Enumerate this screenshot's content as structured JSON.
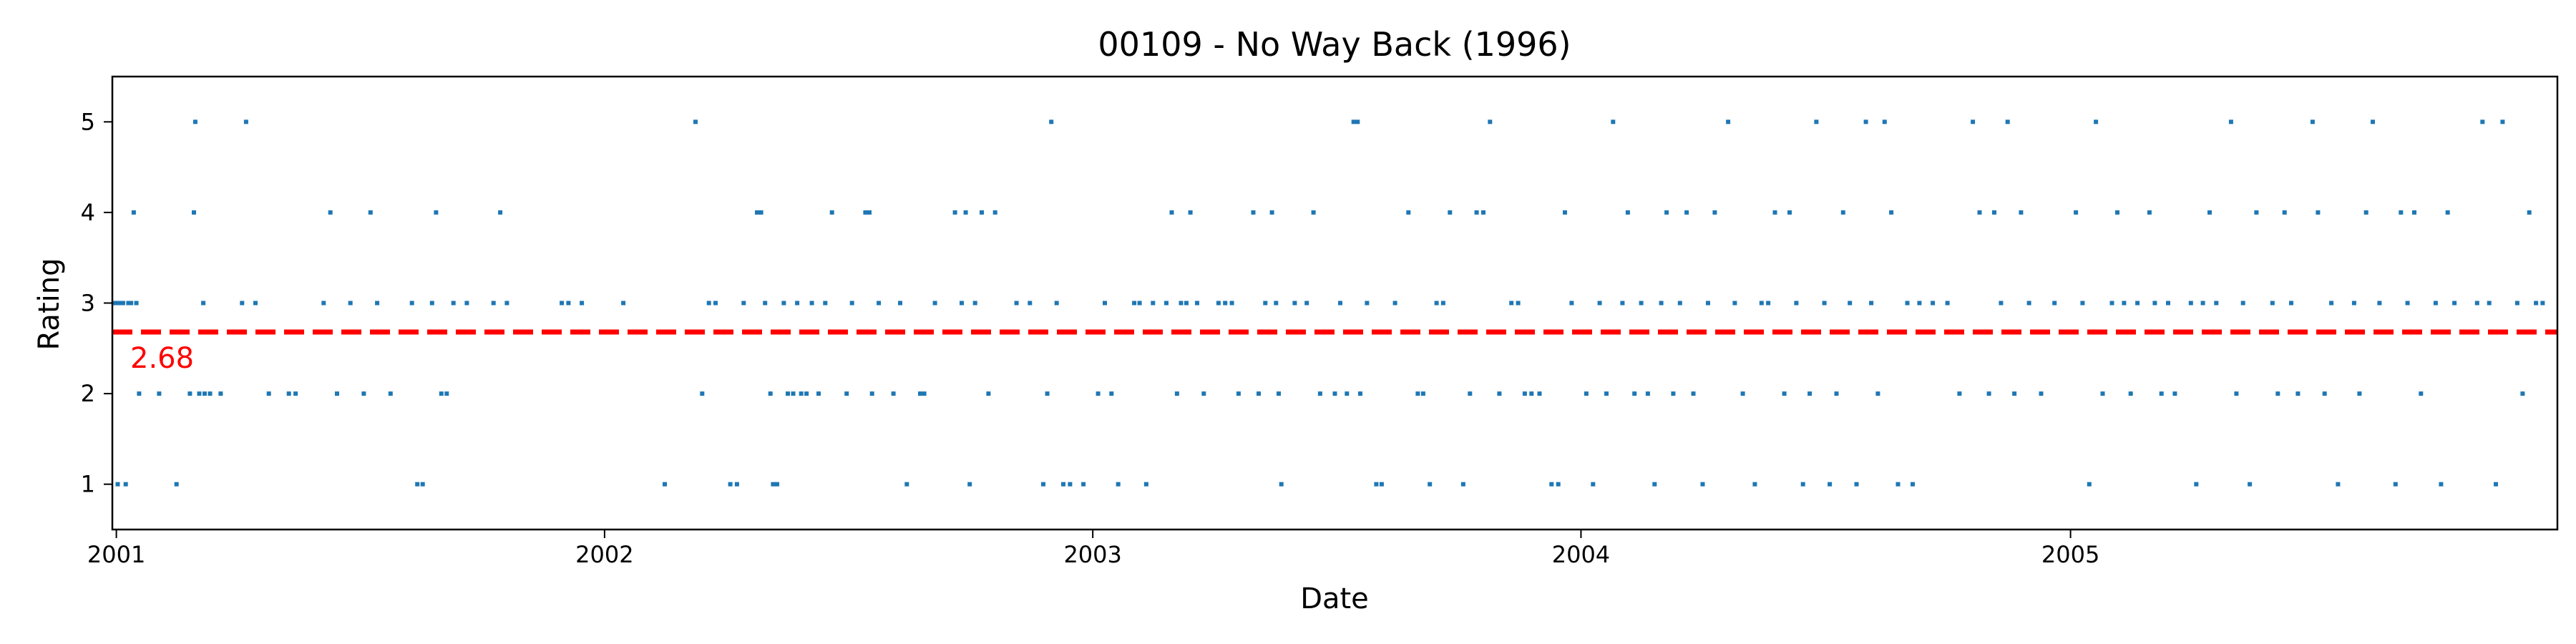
{
  "chart_data": {
    "type": "scatter",
    "title": "00109 - No Way Back (1996)",
    "xlabel": "Date",
    "ylabel": "Rating",
    "x_ticks": [
      "2001",
      "2002",
      "2003",
      "2004",
      "2005"
    ],
    "y_ticks": [
      1,
      2,
      3,
      4,
      5
    ],
    "xlim": [
      "2000-12-29",
      "2005-12-31"
    ],
    "ylim": [
      0.5,
      5.5
    ],
    "grid": false,
    "mean_rating": 2.68,
    "mean_label": "2.68",
    "colors": {
      "points": "#1f77b4",
      "mean_line": "#ff0000"
    },
    "series": [
      {
        "points": [
          [
            "2000-12-30",
            3
          ],
          [
            "2001-01-01",
            3
          ],
          [
            "2001-01-02",
            1
          ],
          [
            "2001-01-04",
            3
          ],
          [
            "2001-01-06",
            3
          ],
          [
            "2001-01-08",
            1
          ],
          [
            "2001-01-10",
            3
          ],
          [
            "2001-01-12",
            3
          ],
          [
            "2001-01-14",
            4
          ],
          [
            "2001-01-16",
            3
          ],
          [
            "2001-01-18",
            2
          ],
          [
            "2001-02-02",
            2
          ],
          [
            "2001-02-15",
            1
          ],
          [
            "2001-02-25",
            2
          ],
          [
            "2001-02-28",
            4
          ],
          [
            "2001-03-01",
            5
          ],
          [
            "2001-03-04",
            2
          ],
          [
            "2001-03-07",
            3
          ],
          [
            "2001-03-08",
            2
          ],
          [
            "2001-03-12",
            2
          ],
          [
            "2001-03-20",
            2
          ],
          [
            "2001-04-05",
            3
          ],
          [
            "2001-04-08",
            5
          ],
          [
            "2001-04-15",
            3
          ],
          [
            "2001-04-25",
            2
          ],
          [
            "2001-05-10",
            2
          ],
          [
            "2001-05-15",
            2
          ],
          [
            "2001-06-05",
            3
          ],
          [
            "2001-06-10",
            4
          ],
          [
            "2001-06-15",
            2
          ],
          [
            "2001-06-25",
            3
          ],
          [
            "2001-07-05",
            2
          ],
          [
            "2001-07-10",
            4
          ],
          [
            "2001-07-15",
            3
          ],
          [
            "2001-07-25",
            2
          ],
          [
            "2001-08-10",
            3
          ],
          [
            "2001-08-14",
            1
          ],
          [
            "2001-08-18",
            1
          ],
          [
            "2001-08-25",
            3
          ],
          [
            "2001-08-28",
            4
          ],
          [
            "2001-09-01",
            2
          ],
          [
            "2001-09-05",
            2
          ],
          [
            "2001-09-10",
            3
          ],
          [
            "2001-09-20",
            3
          ],
          [
            "2001-10-10",
            3
          ],
          [
            "2001-10-15",
            4
          ],
          [
            "2001-10-20",
            3
          ],
          [
            "2001-11-30",
            3
          ],
          [
            "2001-12-05",
            3
          ],
          [
            "2001-12-15",
            3
          ],
          [
            "2002-01-15",
            3
          ],
          [
            "2002-02-15",
            1
          ],
          [
            "2002-03-10",
            5
          ],
          [
            "2002-03-15",
            2
          ],
          [
            "2002-03-20",
            3
          ],
          [
            "2002-03-25",
            3
          ],
          [
            "2002-04-05",
            1
          ],
          [
            "2002-04-10",
            1
          ],
          [
            "2002-04-15",
            3
          ],
          [
            "2002-04-25",
            4
          ],
          [
            "2002-04-28",
            4
          ],
          [
            "2002-05-01",
            3
          ],
          [
            "2002-05-05",
            2
          ],
          [
            "2002-05-07",
            1
          ],
          [
            "2002-05-10",
            1
          ],
          [
            "2002-05-15",
            3
          ],
          [
            "2002-05-18",
            2
          ],
          [
            "2002-05-22",
            2
          ],
          [
            "2002-05-25",
            3
          ],
          [
            "2002-05-28",
            2
          ],
          [
            "2002-06-01",
            2
          ],
          [
            "2002-06-05",
            3
          ],
          [
            "2002-06-10",
            2
          ],
          [
            "2002-06-15",
            3
          ],
          [
            "2002-06-20",
            4
          ],
          [
            "2002-07-01",
            2
          ],
          [
            "2002-07-05",
            3
          ],
          [
            "2002-07-15",
            4
          ],
          [
            "2002-07-18",
            4
          ],
          [
            "2002-07-20",
            2
          ],
          [
            "2002-07-25",
            3
          ],
          [
            "2002-08-05",
            2
          ],
          [
            "2002-08-10",
            3
          ],
          [
            "2002-08-15",
            1
          ],
          [
            "2002-08-25",
            2
          ],
          [
            "2002-08-28",
            2
          ],
          [
            "2002-09-05",
            3
          ],
          [
            "2002-09-20",
            4
          ],
          [
            "2002-09-25",
            3
          ],
          [
            "2002-09-28",
            4
          ],
          [
            "2002-10-01",
            1
          ],
          [
            "2002-10-05",
            3
          ],
          [
            "2002-10-10",
            4
          ],
          [
            "2002-10-15",
            2
          ],
          [
            "2002-10-20",
            4
          ],
          [
            "2002-11-05",
            3
          ],
          [
            "2002-11-15",
            3
          ],
          [
            "2002-11-25",
            1
          ],
          [
            "2002-11-28",
            2
          ],
          [
            "2002-12-01",
            5
          ],
          [
            "2002-12-05",
            3
          ],
          [
            "2002-12-10",
            1
          ],
          [
            "2002-12-15",
            1
          ],
          [
            "2002-12-25",
            1
          ],
          [
            "2003-01-05",
            2
          ],
          [
            "2003-01-10",
            3
          ],
          [
            "2003-01-15",
            2
          ],
          [
            "2003-01-20",
            1
          ],
          [
            "2003-02-01",
            3
          ],
          [
            "2003-02-05",
            3
          ],
          [
            "2003-02-10",
            1
          ],
          [
            "2003-02-15",
            3
          ],
          [
            "2003-02-25",
            3
          ],
          [
            "2003-03-01",
            4
          ],
          [
            "2003-03-05",
            2
          ],
          [
            "2003-03-08",
            3
          ],
          [
            "2003-03-12",
            3
          ],
          [
            "2003-03-15",
            4
          ],
          [
            "2003-03-20",
            3
          ],
          [
            "2003-03-25",
            2
          ],
          [
            "2003-04-05",
            3
          ],
          [
            "2003-04-10",
            3
          ],
          [
            "2003-04-15",
            3
          ],
          [
            "2003-04-20",
            2
          ],
          [
            "2003-05-01",
            4
          ],
          [
            "2003-05-05",
            2
          ],
          [
            "2003-05-10",
            3
          ],
          [
            "2003-05-15",
            4
          ],
          [
            "2003-05-18",
            3
          ],
          [
            "2003-05-20",
            2
          ],
          [
            "2003-05-22",
            1
          ],
          [
            "2003-06-01",
            3
          ],
          [
            "2003-06-10",
            3
          ],
          [
            "2003-06-15",
            4
          ],
          [
            "2003-06-20",
            2
          ],
          [
            "2003-07-01",
            2
          ],
          [
            "2003-07-05",
            3
          ],
          [
            "2003-07-10",
            2
          ],
          [
            "2003-07-15",
            5
          ],
          [
            "2003-07-18",
            5
          ],
          [
            "2003-07-20",
            2
          ],
          [
            "2003-07-25",
            3
          ],
          [
            "2003-08-01",
            1
          ],
          [
            "2003-08-05",
            1
          ],
          [
            "2003-08-15",
            3
          ],
          [
            "2003-08-25",
            4
          ],
          [
            "2003-09-01",
            2
          ],
          [
            "2003-09-05",
            2
          ],
          [
            "2003-09-10",
            1
          ],
          [
            "2003-09-15",
            3
          ],
          [
            "2003-09-20",
            3
          ],
          [
            "2003-09-25",
            4
          ],
          [
            "2003-10-05",
            1
          ],
          [
            "2003-10-10",
            2
          ],
          [
            "2003-10-15",
            4
          ],
          [
            "2003-10-20",
            4
          ],
          [
            "2003-10-25",
            5
          ],
          [
            "2003-11-01",
            2
          ],
          [
            "2003-11-10",
            3
          ],
          [
            "2003-11-15",
            3
          ],
          [
            "2003-11-20",
            2
          ],
          [
            "2003-11-25",
            2
          ],
          [
            "2003-12-01",
            2
          ],
          [
            "2003-12-10",
            1
          ],
          [
            "2003-12-15",
            1
          ],
          [
            "2003-12-20",
            4
          ],
          [
            "2003-12-25",
            3
          ],
          [
            "2004-01-05",
            2
          ],
          [
            "2004-01-10",
            1
          ],
          [
            "2004-01-15",
            3
          ],
          [
            "2004-01-20",
            2
          ],
          [
            "2004-01-25",
            5
          ],
          [
            "2004-02-01",
            3
          ],
          [
            "2004-02-05",
            4
          ],
          [
            "2004-02-10",
            2
          ],
          [
            "2004-02-15",
            3
          ],
          [
            "2004-02-20",
            2
          ],
          [
            "2004-02-25",
            1
          ],
          [
            "2004-03-01",
            3
          ],
          [
            "2004-03-05",
            4
          ],
          [
            "2004-03-10",
            2
          ],
          [
            "2004-03-15",
            3
          ],
          [
            "2004-03-20",
            4
          ],
          [
            "2004-03-25",
            2
          ],
          [
            "2004-04-01",
            1
          ],
          [
            "2004-04-05",
            3
          ],
          [
            "2004-04-10",
            4
          ],
          [
            "2004-04-20",
            5
          ],
          [
            "2004-04-25",
            3
          ],
          [
            "2004-05-01",
            2
          ],
          [
            "2004-05-10",
            1
          ],
          [
            "2004-05-15",
            3
          ],
          [
            "2004-05-20",
            3
          ],
          [
            "2004-05-25",
            4
          ],
          [
            "2004-06-01",
            2
          ],
          [
            "2004-06-05",
            4
          ],
          [
            "2004-06-10",
            3
          ],
          [
            "2004-06-15",
            1
          ],
          [
            "2004-06-20",
            2
          ],
          [
            "2004-06-25",
            5
          ],
          [
            "2004-07-01",
            3
          ],
          [
            "2004-07-05",
            1
          ],
          [
            "2004-07-10",
            2
          ],
          [
            "2004-07-15",
            4
          ],
          [
            "2004-07-20",
            3
          ],
          [
            "2004-07-25",
            1
          ],
          [
            "2004-08-01",
            5
          ],
          [
            "2004-08-05",
            3
          ],
          [
            "2004-08-10",
            2
          ],
          [
            "2004-08-15",
            5
          ],
          [
            "2004-08-20",
            4
          ],
          [
            "2004-08-25",
            1
          ],
          [
            "2004-09-01",
            3
          ],
          [
            "2004-09-05",
            1
          ],
          [
            "2004-09-10",
            3
          ],
          [
            "2004-09-20",
            3
          ],
          [
            "2004-10-01",
            3
          ],
          [
            "2004-10-10",
            2
          ],
          [
            "2004-10-20",
            5
          ],
          [
            "2004-10-25",
            4
          ],
          [
            "2004-11-01",
            2
          ],
          [
            "2004-11-05",
            4
          ],
          [
            "2004-11-10",
            3
          ],
          [
            "2004-11-15",
            5
          ],
          [
            "2004-11-20",
            2
          ],
          [
            "2004-11-25",
            4
          ],
          [
            "2004-12-01",
            3
          ],
          [
            "2004-12-10",
            2
          ],
          [
            "2004-12-20",
            3
          ],
          [
            "2005-01-05",
            4
          ],
          [
            "2005-01-10",
            3
          ],
          [
            "2005-01-15",
            1
          ],
          [
            "2005-01-20",
            5
          ],
          [
            "2005-01-25",
            2
          ],
          [
            "2005-02-01",
            3
          ],
          [
            "2005-02-05",
            4
          ],
          [
            "2005-02-10",
            3
          ],
          [
            "2005-02-15",
            2
          ],
          [
            "2005-02-20",
            3
          ],
          [
            "2005-03-01",
            4
          ],
          [
            "2005-03-05",
            3
          ],
          [
            "2005-03-10",
            2
          ],
          [
            "2005-03-15",
            3
          ],
          [
            "2005-03-20",
            2
          ],
          [
            "2005-04-01",
            3
          ],
          [
            "2005-04-05",
            1
          ],
          [
            "2005-04-10",
            3
          ],
          [
            "2005-04-15",
            4
          ],
          [
            "2005-04-20",
            3
          ],
          [
            "2005-05-01",
            5
          ],
          [
            "2005-05-05",
            2
          ],
          [
            "2005-05-10",
            3
          ],
          [
            "2005-05-15",
            1
          ],
          [
            "2005-05-20",
            4
          ],
          [
            "2005-06-01",
            3
          ],
          [
            "2005-06-05",
            2
          ],
          [
            "2005-06-10",
            4
          ],
          [
            "2005-06-15",
            3
          ],
          [
            "2005-06-20",
            2
          ],
          [
            "2005-07-01",
            5
          ],
          [
            "2005-07-05",
            4
          ],
          [
            "2005-07-10",
            2
          ],
          [
            "2005-07-15",
            3
          ],
          [
            "2005-07-20",
            1
          ],
          [
            "2005-08-01",
            3
          ],
          [
            "2005-08-05",
            2
          ],
          [
            "2005-08-10",
            4
          ],
          [
            "2005-08-15",
            5
          ],
          [
            "2005-08-20",
            3
          ],
          [
            "2005-09-01",
            1
          ],
          [
            "2005-09-05",
            4
          ],
          [
            "2005-09-10",
            3
          ],
          [
            "2005-09-15",
            4
          ],
          [
            "2005-09-20",
            2
          ],
          [
            "2005-10-01",
            3
          ],
          [
            "2005-10-05",
            1
          ],
          [
            "2005-10-10",
            4
          ],
          [
            "2005-10-15",
            3
          ],
          [
            "2005-11-01",
            3
          ],
          [
            "2005-11-05",
            5
          ],
          [
            "2005-11-10",
            3
          ],
          [
            "2005-11-15",
            1
          ],
          [
            "2005-11-20",
            5
          ],
          [
            "2005-12-01",
            3
          ],
          [
            "2005-12-05",
            2
          ],
          [
            "2005-12-10",
            4
          ],
          [
            "2005-12-15",
            3
          ],
          [
            "2005-12-20",
            3
          ]
        ]
      }
    ]
  }
}
